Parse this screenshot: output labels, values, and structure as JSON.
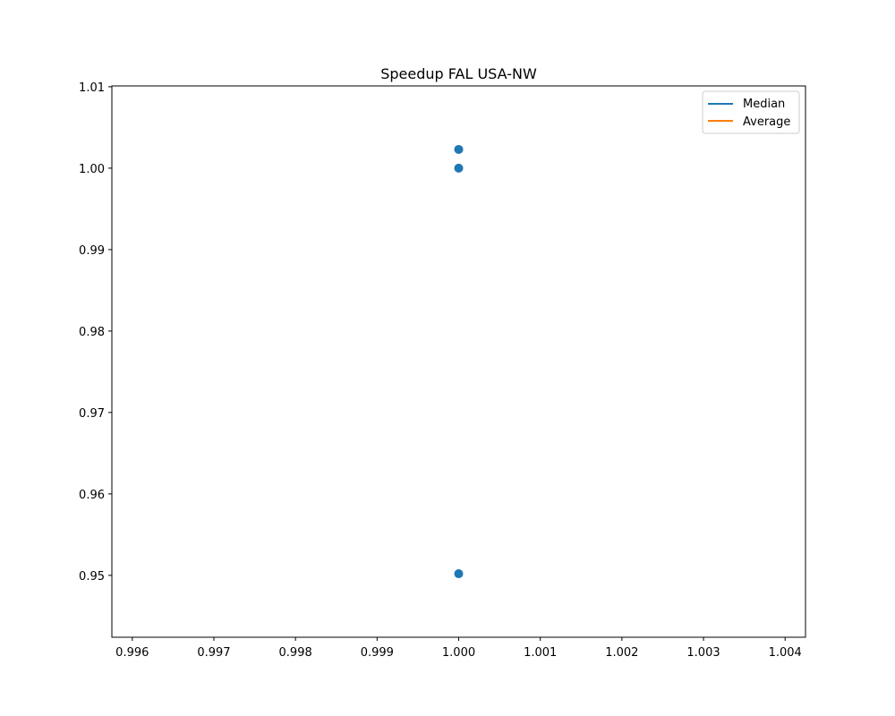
{
  "chart_data": {
    "type": "scatter",
    "title": "Speedup FAL USA-NW",
    "xlabel": "",
    "ylabel": "",
    "xlim": [
      0.99575,
      1.00425
    ],
    "ylim": [
      0.9424,
      1.0101
    ],
    "xticks": [
      0.996,
      0.997,
      0.998,
      0.999,
      1.0,
      1.001,
      1.002,
      1.003,
      1.004
    ],
    "xtick_labels": [
      "0.996",
      "0.997",
      "0.998",
      "0.999",
      "1.000",
      "1.001",
      "1.002",
      "1.003",
      "1.004"
    ],
    "yticks": [
      0.95,
      0.96,
      0.97,
      0.98,
      0.99,
      1.0,
      1.01
    ],
    "ytick_labels": [
      "0.95",
      "0.96",
      "0.97",
      "0.98",
      "0.99",
      "1.00",
      "1.01"
    ],
    "grid": false,
    "legend_position": "top-right",
    "points": {
      "color": "#1f77b4",
      "x": [
        1.0,
        1.0,
        1.0
      ],
      "y": [
        1.0023,
        1.0,
        0.9502
      ]
    },
    "legend": [
      {
        "label": "Median",
        "color": "#1f77b4"
      },
      {
        "label": "Average",
        "color": "#ff7f0e"
      }
    ]
  }
}
